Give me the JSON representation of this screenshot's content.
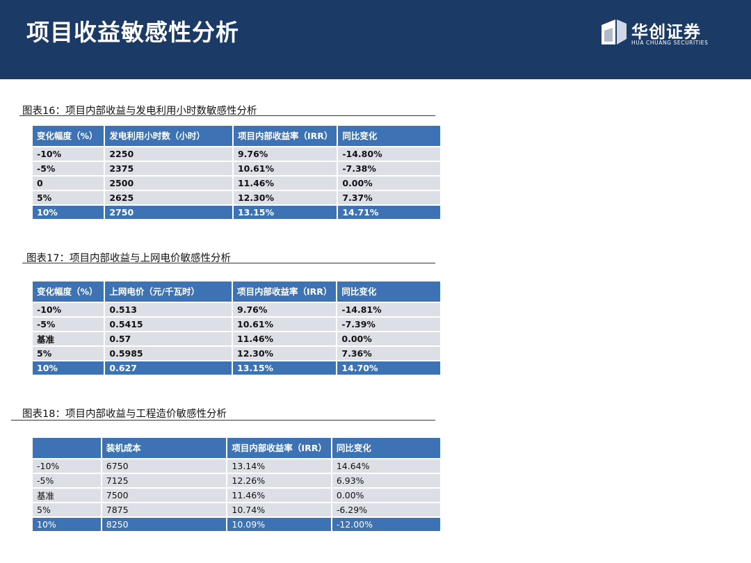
{
  "header": {
    "title": "项目收益敏感性分析",
    "logo_cn": "华创证券",
    "logo_en": "HUA CHUANG SECURITIES"
  },
  "tables": [
    {
      "title": "图表16：项目内部收益与发电利用小时数敏感性分析",
      "headers": [
        "变化幅度（%）",
        "发电利用小时数（小时）",
        "项目内部收益率（IRR）",
        "同比变化"
      ],
      "rows": [
        [
          "-10%",
          "2250",
          "9.76%",
          "-14.80%"
        ],
        [
          "-5%",
          "2375",
          "10.61%",
          "-7.38%"
        ],
        [
          "0",
          "2500",
          "11.46%",
          "0.00%"
        ],
        [
          "5%",
          "2625",
          "12.30%",
          "7.37%"
        ],
        [
          "10%",
          "2750",
          "13.15%",
          "14.71%"
        ]
      ]
    },
    {
      "title": "图表17：项目内部收益与上网电价敏感性分析",
      "headers": [
        "变化幅度（%）",
        "上网电价（元/千瓦时）",
        "项目内部收益率（IRR）",
        "同比变化"
      ],
      "rows": [
        [
          "-10%",
          "0.513",
          "9.76%",
          "-14.81%"
        ],
        [
          "-5%",
          "0.5415",
          "10.61%",
          "-7.39%"
        ],
        [
          "基准",
          "0.57",
          "11.46%",
          "0.00%"
        ],
        [
          "5%",
          "0.5985",
          "12.30%",
          "7.36%"
        ],
        [
          "10%",
          "0.627",
          "13.15%",
          "14.70%"
        ]
      ]
    },
    {
      "title": "图表18：项目内部收益与工程造价敏感性分析",
      "headers": [
        "",
        "装机成本",
        "项目内部收益率（IRR）",
        "同比变化"
      ],
      "rows": [
        [
          "-10%",
          "6750",
          "13.14%",
          "14.64%"
        ],
        [
          "-5%",
          "7125",
          "12.26%",
          "6.93%"
        ],
        [
          "基准",
          "7500",
          "11.46%",
          "0.00%"
        ],
        [
          "5%",
          "7875",
          "10.74%",
          "-6.29%"
        ],
        [
          "10%",
          "8250",
          "10.09%",
          "-12.00%"
        ]
      ]
    }
  ]
}
